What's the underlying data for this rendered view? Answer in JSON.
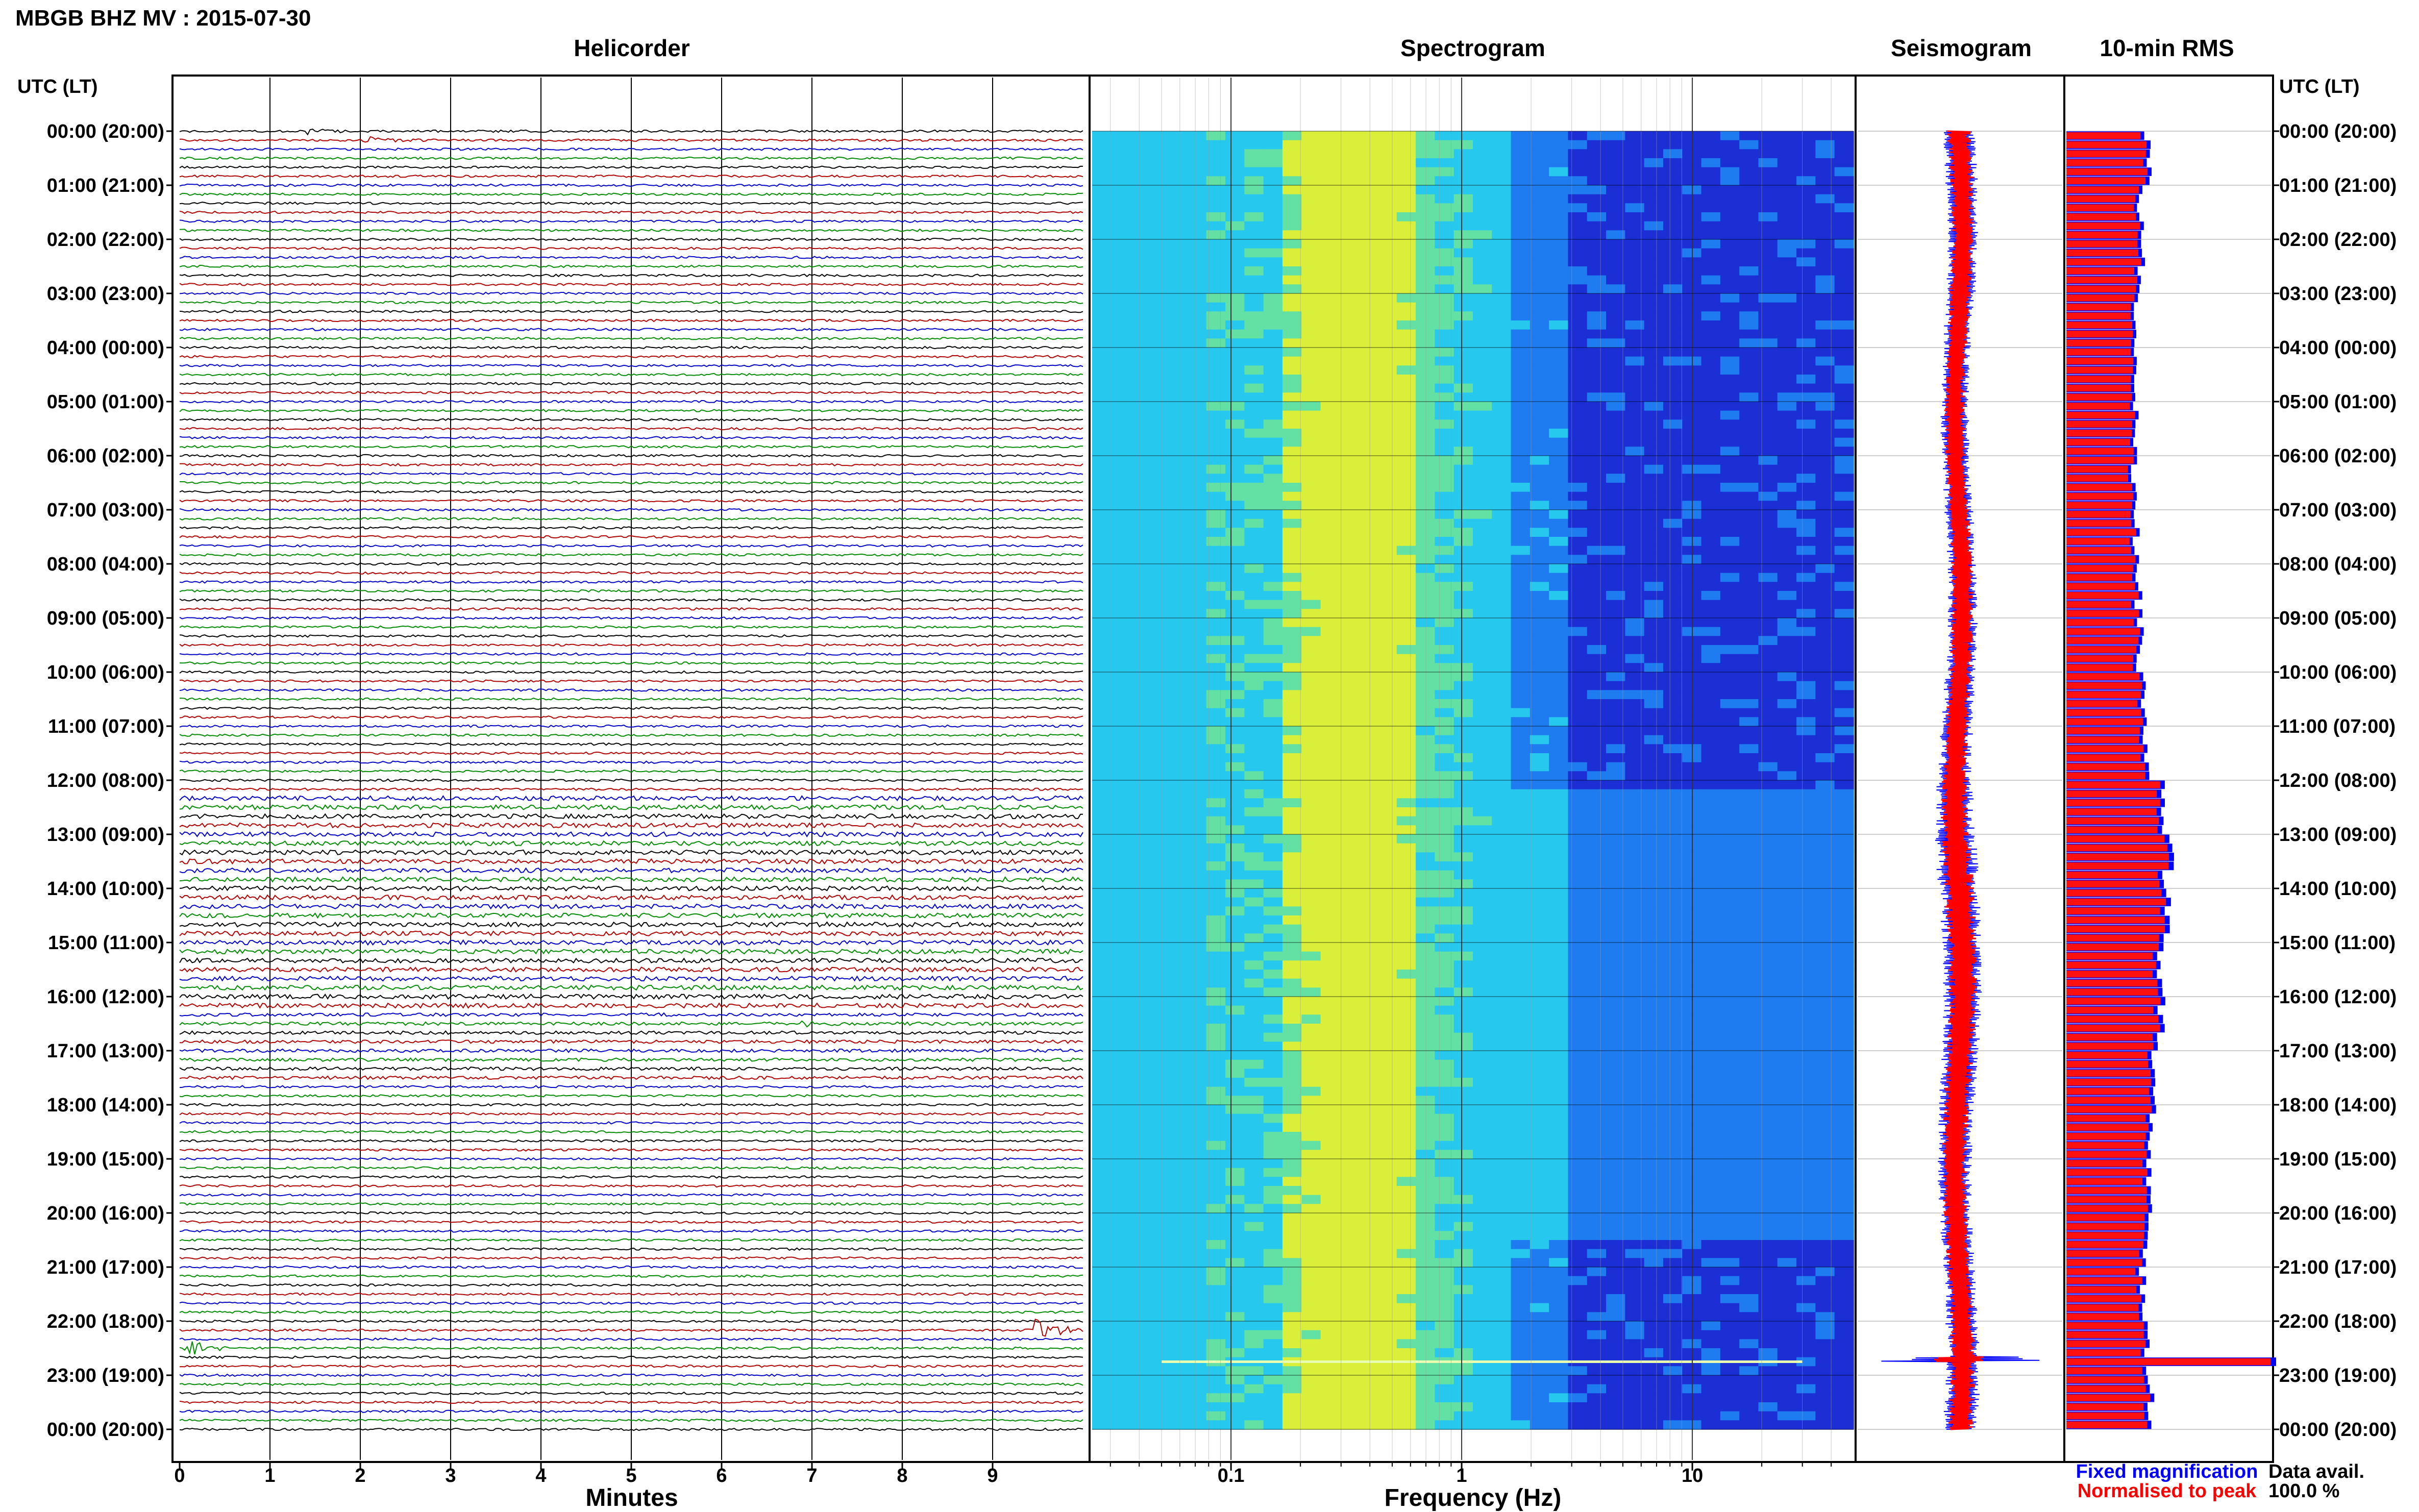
{
  "header": {
    "station_title": "MBGB BHZ MV : 2015-07-30",
    "utc_lt_label_left": "UTC (LT)",
    "utc_lt_label_right": "UTC (LT)"
  },
  "panels": {
    "helicorder_title": "Helicorder",
    "spectrogram_title": "Spectrogram",
    "seismogram_title": "Seismogram",
    "rms_title": "10-min RMS"
  },
  "time_labels": [
    "00:00 (20:00)",
    "01:00 (21:00)",
    "02:00 (22:00)",
    "03:00 (23:00)",
    "04:00 (00:00)",
    "05:00 (01:00)",
    "06:00 (02:00)",
    "07:00 (03:00)",
    "08:00 (04:00)",
    "09:00 (05:00)",
    "10:00 (06:00)",
    "11:00 (07:00)",
    "12:00 (08:00)",
    "13:00 (09:00)",
    "14:00 (10:00)",
    "15:00 (11:00)",
    "16:00 (12:00)",
    "17:00 (13:00)",
    "18:00 (14:00)",
    "19:00 (15:00)",
    "20:00 (16:00)",
    "21:00 (17:00)",
    "22:00 (18:00)",
    "23:00 (19:00)",
    "00:00 (20:00)"
  ],
  "legend": {
    "fixed_label": "Fixed magnification",
    "normalised_label": "Normalised to peak",
    "data_avail_label": "Data avail.",
    "data_avail_value": "100.0 %"
  },
  "colors": {
    "trace_colors": [
      "#000000",
      "#b00000",
      "#0000c8",
      "#008c00"
    ],
    "fixed_magnification": "#0000ff",
    "normalised_to_peak": "#ff0000"
  },
  "chart_data": [
    {
      "type": "line",
      "title": "Helicorder",
      "xlabel": "Minutes",
      "x_ticks": [
        "0",
        "1",
        "2",
        "3",
        "4",
        "5",
        "6",
        "7",
        "8",
        "9"
      ],
      "xlim": [
        0,
        10
      ],
      "rows_per_hour": 6,
      "rows": 145,
      "events": [
        {
          "row": 0,
          "minute": 1.4,
          "amp": 0.4
        },
        {
          "row": 1,
          "minute": 2.1,
          "amp": 0.3
        },
        {
          "row": 99,
          "minute": 6.9,
          "amp": 0.3
        },
        {
          "row": 135,
          "minute": 0.1,
          "amp": 0.9
        },
        {
          "row": 133,
          "minute": 9.5,
          "amp": 1.6
        }
      ]
    },
    {
      "type": "heatmap",
      "title": "Spectrogram",
      "xlabel": "Frequency (Hz)",
      "x_scale": "log",
      "xlim": [
        0.025,
        50
      ],
      "x_ticks": [
        "0.1",
        "1",
        "10"
      ],
      "colormap": [
        "#1b2fd4",
        "#1f7bf0",
        "#26c8ee",
        "#63e0a3",
        "#d9ef3a"
      ],
      "peak_band_hz": [
        0.2,
        0.6
      ],
      "event_line_hour": 22.75
    },
    {
      "type": "line",
      "title": "Seismogram",
      "series": [
        {
          "name": "Fixed magnification",
          "color": "#0000ff"
        },
        {
          "name": "Normalised to peak",
          "color": "#ff0000"
        }
      ]
    },
    {
      "type": "bar",
      "title": "10-min RMS",
      "orientation": "horizontal",
      "bins": 144,
      "series": [
        {
          "name": "Fixed magnification",
          "color": "#0000ff"
        },
        {
          "name": "Normalised to peak",
          "color": "#ff0000"
        }
      ],
      "hourly_level": [
        0.38,
        0.35,
        0.35,
        0.33,
        0.32,
        0.33,
        0.32,
        0.33,
        0.34,
        0.35,
        0.36,
        0.38,
        0.44,
        0.48,
        0.47,
        0.45,
        0.44,
        0.42,
        0.4,
        0.39,
        0.37,
        0.36,
        0.38,
        0.4
      ],
      "peak_hour": 22.7,
      "peak_level": 1.0
    }
  ]
}
